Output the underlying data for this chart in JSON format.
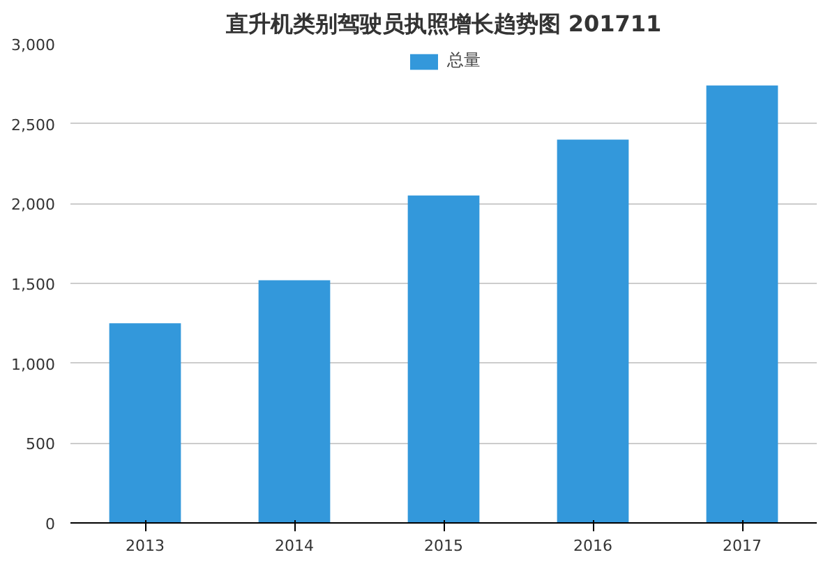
{
  "chart_data": {
    "type": "bar",
    "title": "直升机类别驾驶员执照增长趋势图 201711",
    "categories": [
      "2013",
      "2014",
      "2015",
      "2016",
      "2017"
    ],
    "series": [
      {
        "name": "总量",
        "color": "#3398db",
        "values": [
          1250,
          1520,
          2050,
          2400,
          2740
        ]
      }
    ],
    "ylim": [
      0,
      3000
    ],
    "yticks": [
      {
        "value": 0,
        "label": "0"
      },
      {
        "value": 500,
        "label": "500"
      },
      {
        "value": 1000,
        "label": "1,000"
      },
      {
        "value": 1500,
        "label": "1,500"
      },
      {
        "value": 2000,
        "label": "2,000"
      },
      {
        "value": 2500,
        "label": "2,500"
      },
      {
        "value": 3000,
        "label": "3,000"
      }
    ],
    "grid": "y",
    "legend": "top"
  }
}
